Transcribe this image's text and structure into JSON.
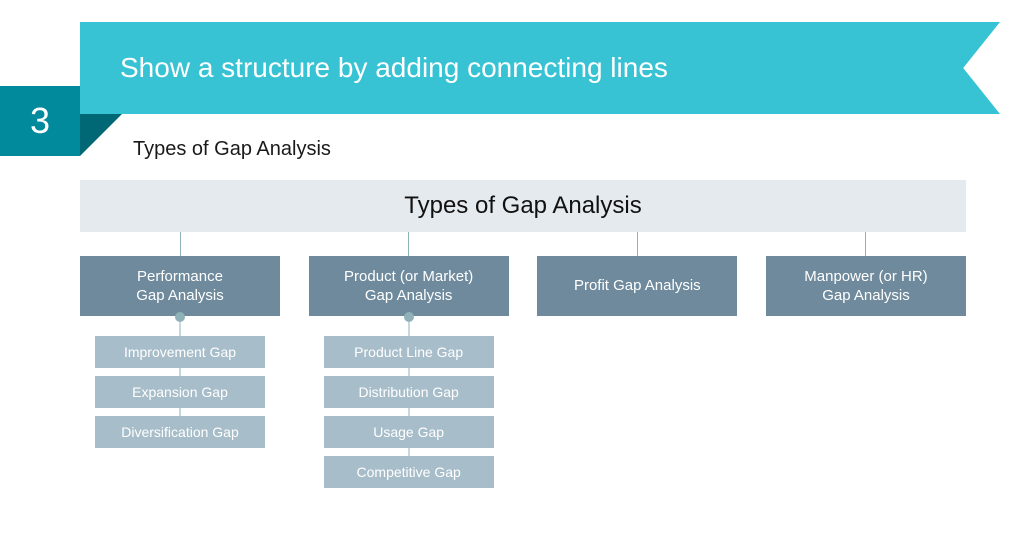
{
  "header": {
    "number": "3",
    "title": "Show a structure by adding connecting lines",
    "subtitle": "Types of Gap Analysis"
  },
  "colors": {
    "ribbon": "#37c3d4",
    "badge": "#008a9b",
    "fold": "#006875",
    "root_bg": "#e5eaee",
    "branch_bg": "#6e8a9c",
    "sub_bg": "#a7bdc9",
    "connector": "#8fb2b8"
  },
  "diagram": {
    "type": "tree",
    "root": {
      "label": "Types of Gap Analysis"
    },
    "branches": [
      {
        "label": "Performance\nGap Analysis",
        "children": [
          {
            "label": "Improvement Gap"
          },
          {
            "label": "Expansion Gap"
          },
          {
            "label": "Diversification Gap"
          }
        ]
      },
      {
        "label": "Product (or Market)\nGap Analysis",
        "children": [
          {
            "label": "Product Line Gap"
          },
          {
            "label": "Distribution Gap"
          },
          {
            "label": "Usage Gap"
          },
          {
            "label": "Competitive Gap"
          }
        ]
      },
      {
        "label": "Profit Gap Analysis",
        "children": []
      },
      {
        "label": "Manpower (or HR)\nGap Analysis",
        "children": []
      }
    ]
  },
  "fonts": {
    "title_size": 28,
    "subtitle_size": 20,
    "root_size": 24,
    "branch_size": 15,
    "sub_size": 14
  }
}
